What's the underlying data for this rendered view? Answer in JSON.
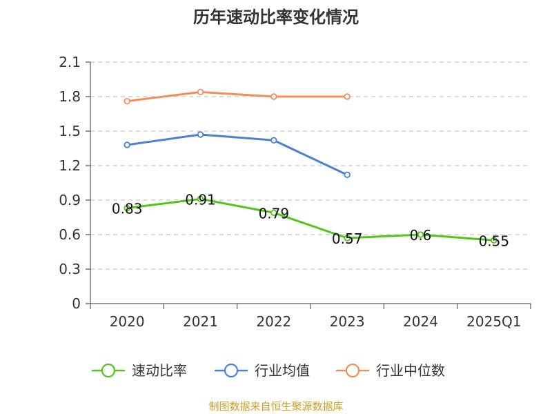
{
  "chart_data": {
    "type": "line",
    "title": "历年速动比率变化情况",
    "categories": [
      "2020",
      "2021",
      "2022",
      "2023",
      "2024",
      "2025Q1"
    ],
    "ylim": [
      0,
      2.1
    ],
    "yticks": [
      "0",
      "0.3",
      "0.6",
      "0.9",
      "1.2",
      "1.5",
      "1.8",
      "2.1"
    ],
    "grid": true,
    "legend_position": "bottom",
    "series": [
      {
        "name": "速动比率",
        "color": "#52c41a",
        "values": [
          0.83,
          0.91,
          0.79,
          0.57,
          0.6,
          0.55
        ],
        "labels": [
          "0.83",
          "0.91",
          "0.79",
          "0.57",
          "0.6",
          "0.55"
        ]
      },
      {
        "name": "行业均值",
        "color": "#4a7fd8",
        "values": [
          1.38,
          1.47,
          1.42,
          1.12,
          null,
          null
        ]
      },
      {
        "name": "行业中位数",
        "color": "#f28e5b",
        "values": [
          1.76,
          1.84,
          1.8,
          1.8,
          null,
          null
        ]
      }
    ]
  },
  "source_note": "制图数据来自恒生聚源数据库"
}
